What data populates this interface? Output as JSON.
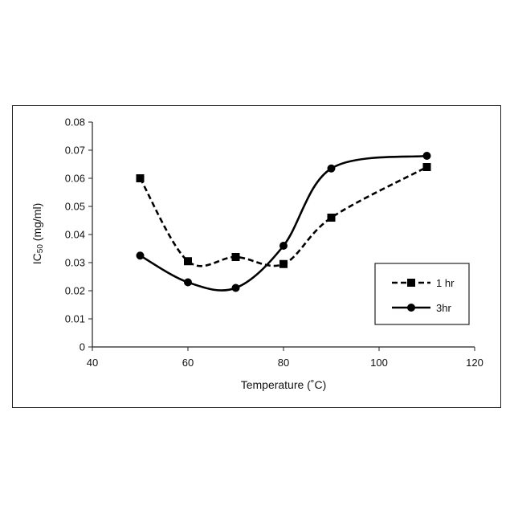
{
  "chart_data": {
    "type": "line",
    "xlabel": "Temperature (˚C)",
    "ylabel_main": "IC",
    "ylabel_sub": "50",
    "ylabel_rest": " (mg/ml)",
    "xlim": [
      40,
      120
    ],
    "ylim": [
      0,
      0.08
    ],
    "xticks": [
      40,
      60,
      80,
      100,
      120
    ],
    "yticks": [
      "0",
      "0.01",
      "0.02",
      "0.03",
      "0.04",
      "0.05",
      "0.06",
      "0.07",
      "0.08"
    ],
    "grid": false,
    "legend_position": "right",
    "series": [
      {
        "name": "1 hr",
        "marker": "square",
        "line_style": "dashed",
        "color": "#000000",
        "x": [
          50,
          60,
          70,
          80,
          90,
          110
        ],
        "y": [
          0.06,
          0.0305,
          0.032,
          0.0295,
          0.046,
          0.064
        ]
      },
      {
        "name": "3hr",
        "marker": "circle",
        "line_style": "solid",
        "color": "#000000",
        "x": [
          50,
          60,
          70,
          80,
          90,
          110
        ],
        "y": [
          0.0325,
          0.023,
          0.021,
          0.036,
          0.0635,
          0.068
        ]
      }
    ]
  }
}
